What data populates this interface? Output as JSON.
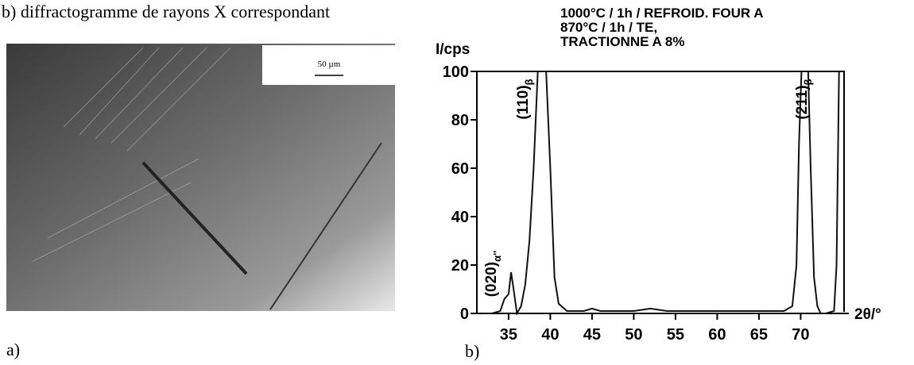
{
  "header": {
    "text": "b) diffractogramme de rayons X correspondant"
  },
  "panel_a": {
    "label": "a)",
    "scale_bar": "50 µm"
  },
  "chart_data": {
    "type": "line",
    "title_lines": [
      "1000°C / 1h / REFROID. FOUR A",
      "870°C / 1h / TE,",
      "TRACTIONNE A 8%"
    ],
    "y_label": "I/cps",
    "x_label": "2θ/°",
    "panel_label": "b)",
    "annotations": [
      {
        "text": "(020)",
        "subscript": "α''"
      },
      {
        "text": "(110)",
        "subscript": "β"
      },
      {
        "text": "(211)",
        "subscript": "β"
      }
    ],
    "x": [
      32,
      33,
      34,
      34.5,
      35,
      35.3,
      35.6,
      36,
      36.5,
      37,
      37.5,
      38,
      38.5,
      39,
      39.5,
      40,
      40.5,
      41,
      42,
      43,
      44,
      45,
      46,
      48,
      50,
      52,
      54,
      56,
      58,
      60,
      62,
      64,
      66,
      68,
      69,
      69.5,
      69.8,
      70.1,
      70.9,
      71.2,
      71.6,
      72,
      72.4,
      73,
      74,
      74.3,
      74.6
    ],
    "values": [
      0,
      0,
      1,
      6,
      8,
      17,
      10,
      0,
      3,
      12,
      30,
      60,
      100,
      100,
      100,
      60,
      15,
      4,
      1,
      1,
      1,
      2,
      1,
      1,
      1,
      2,
      1,
      1,
      1,
      1,
      1,
      1,
      1,
      1,
      3,
      20,
      70,
      100,
      100,
      60,
      15,
      3,
      0,
      0,
      1,
      20,
      100
    ],
    "color": "#111111",
    "xlim": [
      31.2,
      75.2
    ],
    "ylim": [
      0,
      100
    ],
    "xticks": [
      35,
      40,
      45,
      50,
      55,
      60,
      65,
      70
    ],
    "yticks": [
      0,
      20,
      40,
      60,
      80,
      100
    ]
  }
}
